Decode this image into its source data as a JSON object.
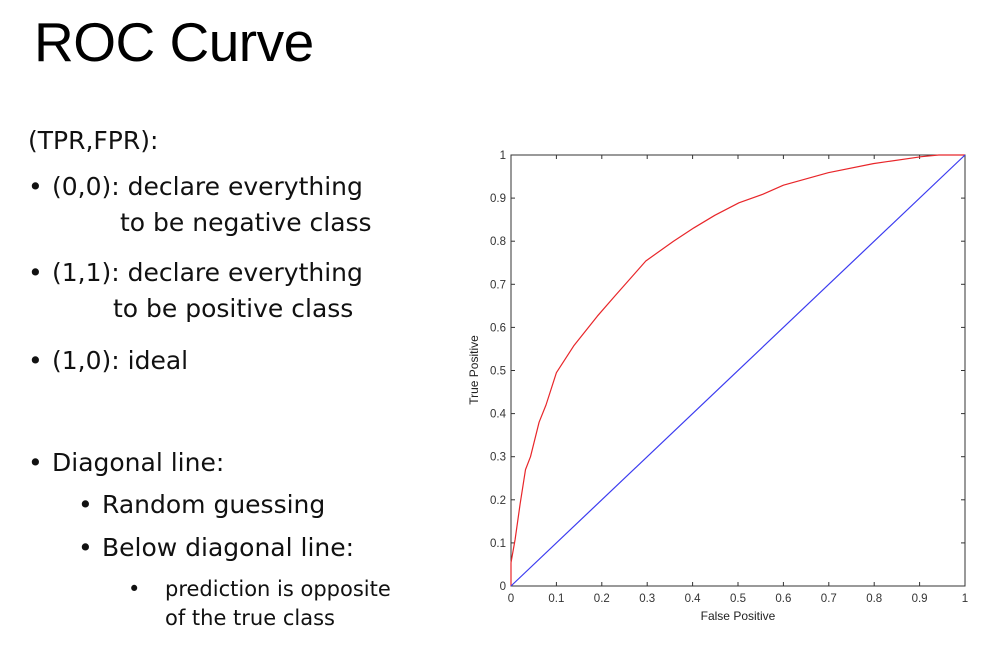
{
  "slide": {
    "title": "ROC Curve",
    "intro": "(TPR,FPR):",
    "bullets": [
      {
        "bullet": "•",
        "line1": "(0,0): declare everything",
        "line2": "to be negative class"
      },
      {
        "bullet": "•",
        "line1": "(1,1): declare everything",
        "line2": "to be positive class"
      },
      {
        "bullet": "•",
        "line1": "(1,0): ideal"
      }
    ],
    "diagonal": {
      "bullet": "•",
      "label": "Diagonal line:",
      "sub": [
        {
          "bullet": "•",
          "label": "Random guessing"
        },
        {
          "bullet": "•",
          "label": "Below diagonal line:"
        }
      ],
      "subsub": {
        "bullet": "•",
        "line1": "prediction is opposite",
        "line2": "of the true class"
      }
    }
  },
  "chart_data": {
    "type": "line",
    "title": "",
    "xlabel": "False Positive",
    "ylabel": "True Positive",
    "xlim": [
      0,
      1
    ],
    "ylim": [
      0,
      1
    ],
    "xticks": [
      "0",
      "0.1",
      "0.2",
      "0.3",
      "0.4",
      "0.5",
      "0.6",
      "0.7",
      "0.8",
      "0.9",
      "1"
    ],
    "yticks": [
      "0",
      "0.1",
      "0.2",
      "0.3",
      "0.4",
      "0.5",
      "0.6",
      "0.7",
      "0.8",
      "0.9",
      "1"
    ],
    "grid": false,
    "legend": null,
    "series": [
      {
        "name": "ROC curve",
        "color": "#e8262a",
        "x": [
          0,
          0,
          0.009,
          0.02,
          0.032,
          0.043,
          0.062,
          0.077,
          0.1,
          0.138,
          0.19,
          0.229,
          0.297,
          0.358,
          0.403,
          0.449,
          0.502,
          0.555,
          0.6,
          0.699,
          0.798,
          0.904,
          0.942,
          1.0
        ],
        "y": [
          0,
          0.054,
          0.108,
          0.19,
          0.27,
          0.3,
          0.38,
          0.42,
          0.495,
          0.557,
          0.626,
          0.673,
          0.754,
          0.8,
          0.831,
          0.86,
          0.889,
          0.909,
          0.93,
          0.959,
          0.98,
          0.996,
          1.0,
          1.0
        ]
      },
      {
        "name": "Random guessing (diagonal)",
        "color": "#3b3bf0",
        "x": [
          0,
          1
        ],
        "y": [
          0,
          1
        ]
      }
    ]
  }
}
